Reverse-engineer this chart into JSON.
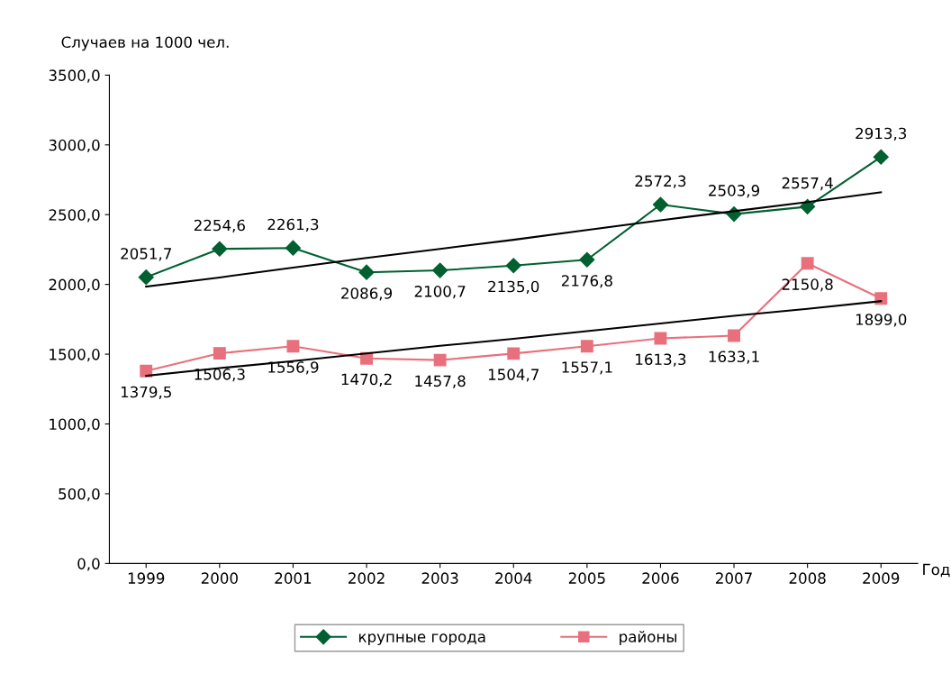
{
  "chart_data": {
    "type": "line",
    "ylabel": "Случаев на 1000 чел.",
    "xlabel": "Год",
    "categories": [
      "1999",
      "2000",
      "2001",
      "2002",
      "2003",
      "2004",
      "2005",
      "2006",
      "2007",
      "2008",
      "2009"
    ],
    "series": [
      {
        "name": "крупные города",
        "color": "#006030",
        "marker": "diamond",
        "values": [
          2051.7,
          2254.6,
          2261.3,
          2086.9,
          2100.7,
          2135.0,
          2176.8,
          2572.3,
          2503.9,
          2557.4,
          2913.3
        ],
        "value_labels": [
          "2051,7",
          "2254,6",
          "2261,3",
          "2086,9",
          "2100,7",
          "2135,0",
          "2176,8",
          "2572,3",
          "2503,9",
          "2557,4",
          "2913,3"
        ]
      },
      {
        "name": "районы",
        "color": "#e8707c",
        "marker": "square",
        "values": [
          1379.5,
          1506.3,
          1556.9,
          1470.2,
          1457.8,
          1504.7,
          1557.1,
          1613.3,
          1633.1,
          2150.8,
          1899.0
        ],
        "value_labels": [
          "1379,5",
          "1506,3",
          "1556,9",
          "1470,2",
          "1457,8",
          "1504,7",
          "1557,1",
          "1613,3",
          "1633,1",
          "2150,8",
          "1899,0"
        ]
      },
      {
        "type": "line",
        "color": "#000000",
        "marker": "none",
        "values": [
          1985,
          2050,
          2120,
          2190,
          2255,
          2320,
          2390,
          2460,
          2525,
          2590,
          2660
        ]
      },
      {
        "type": "line",
        "color": "#000000",
        "marker": "none",
        "values": [
          1345,
          1400,
          1450,
          1505,
          1560,
          1610,
          1665,
          1720,
          1775,
          1825,
          1880
        ]
      }
    ],
    "ylim": [
      0,
      3500
    ],
    "yticks": [
      {
        "value": 0,
        "label": "0,0"
      },
      {
        "value": 500,
        "label": "500,0"
      },
      {
        "value": 1000,
        "label": "1000,0"
      },
      {
        "value": 1500,
        "label": "1500,0"
      },
      {
        "value": 2000,
        "label": "2000,0"
      },
      {
        "value": 2500,
        "label": "2500,0"
      },
      {
        "value": 3000,
        "label": "3000,0"
      },
      {
        "value": 3500,
        "label": "3500,0"
      }
    ],
    "grid": false,
    "legend": "bottom",
    "line_style": "solid"
  }
}
